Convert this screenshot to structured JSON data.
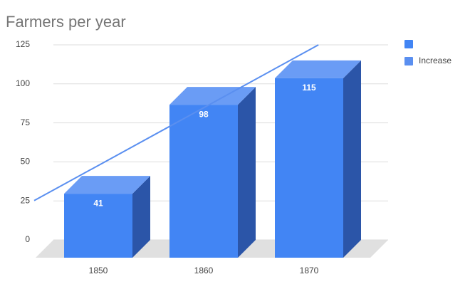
{
  "chart_data": {
    "type": "bar3d",
    "title": "Farmers per year",
    "categories": [
      "1850",
      "1860",
      "1870"
    ],
    "series": [
      {
        "name": null,
        "color": "#4285f4",
        "values": [
          41,
          98,
          115
        ]
      },
      {
        "name": "Increase",
        "type": "trendline",
        "color": "#5a8ff0",
        "values": [
          47.7,
          84.7,
          121.7
        ]
      }
    ],
    "ylim": [
      0,
      125
    ],
    "yticks": [
      0,
      25,
      50,
      75,
      100,
      125
    ],
    "grid": true,
    "legend": "right"
  }
}
